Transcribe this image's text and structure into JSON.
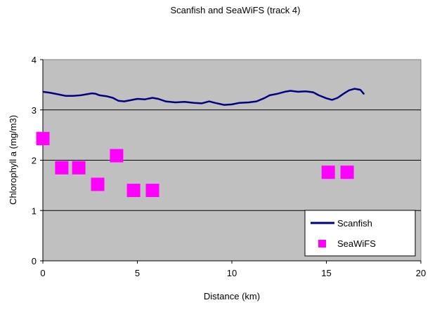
{
  "chart_data": {
    "type": "line",
    "title": "Scanfish and SeaWiFS (track 4)",
    "xlabel": "Distance (km)",
    "ylabel": "Chlorophyll a (mg/m3)",
    "xlim": [
      0,
      20
    ],
    "ylim": [
      0,
      4
    ],
    "x_ticks": [
      0,
      5,
      10,
      15,
      20
    ],
    "y_ticks": [
      0,
      1,
      2,
      3,
      4
    ],
    "grid": "horizontal",
    "plot_background": "#c0c0c0",
    "legend_position": "bottom-right",
    "series": [
      {
        "name": "Scanfish",
        "kind": "line",
        "color": "#000080",
        "points": [
          [
            0,
            3.36
          ],
          [
            0.4,
            3.34
          ],
          [
            0.8,
            3.31
          ],
          [
            1.2,
            3.28
          ],
          [
            1.6,
            3.28
          ],
          [
            2.0,
            3.29
          ],
          [
            2.3,
            3.31
          ],
          [
            2.6,
            3.33
          ],
          [
            2.8,
            3.32
          ],
          [
            3.0,
            3.29
          ],
          [
            3.4,
            3.27
          ],
          [
            3.7,
            3.24
          ],
          [
            4.0,
            3.18
          ],
          [
            4.3,
            3.17
          ],
          [
            4.6,
            3.19
          ],
          [
            5.0,
            3.22
          ],
          [
            5.4,
            3.21
          ],
          [
            5.8,
            3.24
          ],
          [
            6.1,
            3.22
          ],
          [
            6.5,
            3.17
          ],
          [
            7.0,
            3.15
          ],
          [
            7.5,
            3.16
          ],
          [
            8.0,
            3.14
          ],
          [
            8.4,
            3.13
          ],
          [
            8.8,
            3.17
          ],
          [
            9.1,
            3.14
          ],
          [
            9.6,
            3.1
          ],
          [
            10.0,
            3.11
          ],
          [
            10.4,
            3.14
          ],
          [
            10.9,
            3.15
          ],
          [
            11.3,
            3.17
          ],
          [
            11.7,
            3.23
          ],
          [
            12.0,
            3.29
          ],
          [
            12.4,
            3.32
          ],
          [
            12.8,
            3.36
          ],
          [
            13.1,
            3.38
          ],
          [
            13.5,
            3.36
          ],
          [
            13.9,
            3.37
          ],
          [
            14.3,
            3.35
          ],
          [
            14.6,
            3.29
          ],
          [
            15.0,
            3.23
          ],
          [
            15.3,
            3.2
          ],
          [
            15.6,
            3.24
          ],
          [
            15.9,
            3.32
          ],
          [
            16.2,
            3.39
          ],
          [
            16.5,
            3.42
          ],
          [
            16.8,
            3.4
          ],
          [
            17.0,
            3.31
          ]
        ]
      },
      {
        "name": "SeaWiFS",
        "kind": "scatter",
        "marker": "square",
        "color": "#ff00ff",
        "points": [
          [
            0,
            2.43
          ],
          [
            1.0,
            1.85
          ],
          [
            1.9,
            1.85
          ],
          [
            2.9,
            1.52
          ],
          [
            3.9,
            2.09
          ],
          [
            4.8,
            1.4
          ],
          [
            5.8,
            1.4
          ],
          [
            15.1,
            1.76
          ],
          [
            16.1,
            1.76
          ]
        ]
      }
    ]
  }
}
